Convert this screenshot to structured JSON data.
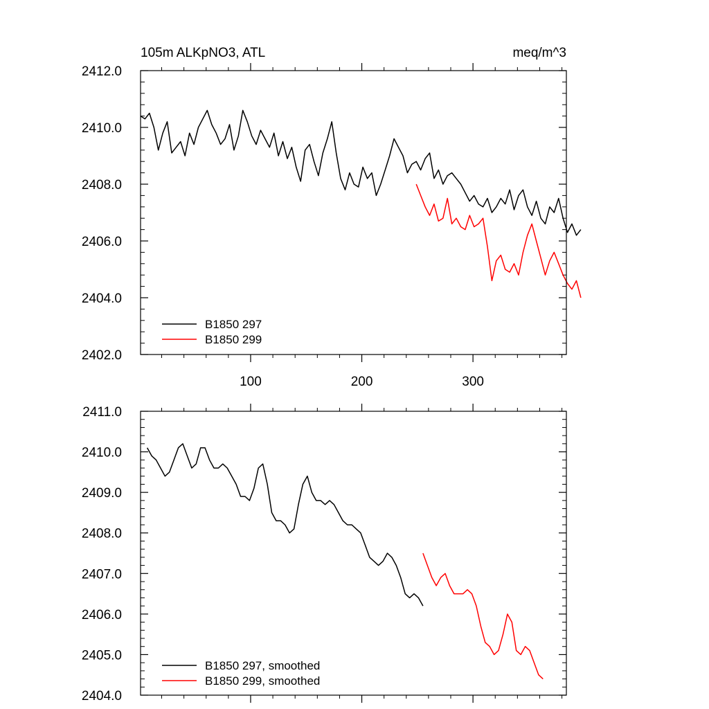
{
  "figure": {
    "title_left": "105m ALKpNO3, ATL",
    "title_right": "meq/m^3"
  },
  "chart_data": [
    {
      "type": "line",
      "panel": "top",
      "title": "105m ALKpNO3, ATL",
      "units": "meq/m^3",
      "xlim": [
        1,
        384
      ],
      "ylim": [
        2402.0,
        2412.0
      ],
      "x_ticks": [
        100,
        200,
        300
      ],
      "x_tick_labels": [
        "100",
        "200",
        "300"
      ],
      "y_ticks": [
        2402.0,
        2404.0,
        2406.0,
        2408.0,
        2410.0,
        2412.0
      ],
      "y_tick_labels": [
        "2402.0",
        "2404.0",
        "2406.0",
        "2408.0",
        "2410.0",
        "2412.0"
      ],
      "legend_position": "bottom-left",
      "series": [
        {
          "name": "B1850 297",
          "color": "#000000",
          "x_start": 1,
          "x_step": 4,
          "values": [
            2410.4,
            2410.3,
            2410.5,
            2410.0,
            2409.2,
            2409.8,
            2410.2,
            2409.1,
            2409.3,
            2409.5,
            2409.0,
            2409.8,
            2409.4,
            2410.0,
            2410.3,
            2410.6,
            2410.1,
            2409.8,
            2409.4,
            2409.6,
            2410.1,
            2409.2,
            2409.7,
            2410.6,
            2410.2,
            2409.7,
            2409.4,
            2409.9,
            2409.6,
            2409.3,
            2409.8,
            2409.0,
            2409.5,
            2408.9,
            2409.3,
            2408.6,
            2408.1,
            2409.2,
            2409.4,
            2408.8,
            2408.3,
            2409.1,
            2409.6,
            2410.2,
            2409.1,
            2408.2,
            2407.8,
            2408.4,
            2408.0,
            2407.9,
            2408.6,
            2408.2,
            2408.4,
            2407.6,
            2408.0,
            2408.5,
            2409.0,
            2409.6,
            2409.3,
            2409.0,
            2408.4,
            2408.7,
            2408.8,
            2408.5,
            2408.9,
            2409.1,
            2408.2,
            2408.5,
            2408.0,
            2408.3,
            2408.4,
            2408.2,
            2408.0,
            2407.7,
            2407.4,
            2407.6,
            2407.3,
            2407.2,
            2407.5,
            2407.0,
            2407.2,
            2407.5,
            2407.3,
            2407.8,
            2407.1,
            2407.6,
            2407.8,
            2407.2,
            2406.9,
            2407.4,
            2406.8,
            2406.6,
            2407.2,
            2407.0,
            2407.5,
            2406.8,
            2406.3,
            2406.6,
            2406.2,
            2406.4
          ],
          "smoothed": [
            2410.1,
            2409.9,
            2409.8,
            2409.6,
            2409.4,
            2409.5,
            2409.8,
            2410.1,
            2410.2,
            2409.9,
            2409.6,
            2409.7,
            2410.1,
            2410.1,
            2409.8,
            2409.6,
            2409.6,
            2409.7,
            2409.6,
            2409.4,
            2409.2,
            2408.9,
            2408.9,
            2408.8,
            2409.1,
            2409.6,
            2409.7,
            2409.2,
            2408.5,
            2408.3,
            2408.3,
            2408.2,
            2408.0,
            2408.1,
            2408.7,
            2409.2,
            2409.4,
            2409.0,
            2408.8,
            2408.8,
            2408.7,
            2408.8,
            2408.7,
            2408.5,
            2408.3,
            2408.2,
            2408.2,
            2408.1,
            2408.0,
            2407.7,
            2407.4,
            2407.3,
            2407.2,
            2407.3,
            2407.5,
            2407.4,
            2407.2,
            2406.9,
            2406.5,
            2406.4,
            2406.5,
            2406.4,
            2406.2
          ]
        },
        {
          "name": "B1850 299",
          "color": "#ff0000",
          "x_start": 249,
          "x_step": 4,
          "values": [
            2408.0,
            2407.6,
            2407.2,
            2406.9,
            2407.3,
            2406.7,
            2406.8,
            2407.5,
            2406.6,
            2406.8,
            2406.5,
            2406.4,
            2406.9,
            2406.5,
            2406.6,
            2406.8,
            2405.8,
            2404.6,
            2405.3,
            2405.5,
            2405.0,
            2404.9,
            2405.2,
            2404.8,
            2405.6,
            2406.2,
            2406.6,
            2406.0,
            2405.4,
            2404.8,
            2405.3,
            2405.6,
            2405.2,
            2404.8,
            2404.5,
            2404.3,
            2404.6,
            2404.0
          ],
          "smoothed": [
            2407.5,
            2407.2,
            2406.9,
            2406.7,
            2406.9,
            2407.0,
            2406.7,
            2406.5,
            2406.5,
            2406.5,
            2406.6,
            2406.5,
            2406.2,
            2405.7,
            2405.3,
            2405.2,
            2405.0,
            2405.1,
            2405.5,
            2406.0,
            2405.8,
            2405.1,
            2405.0,
            2405.2,
            2405.1,
            2404.8,
            2404.5,
            2404.4
          ]
        }
      ]
    },
    {
      "type": "line",
      "panel": "bottom",
      "xlim": [
        1,
        384
      ],
      "ylim": [
        2404.0,
        2411.0
      ],
      "x_ticks": [
        100,
        200,
        300
      ],
      "y_ticks": [
        2404.0,
        2405.0,
        2406.0,
        2407.0,
        2408.0,
        2409.0,
        2410.0,
        2411.0
      ],
      "y_tick_labels": [
        "2404.0",
        "2405.0",
        "2406.0",
        "2407.0",
        "2408.0",
        "2409.0",
        "2410.0",
        "2411.0"
      ],
      "legend_position": "bottom-left",
      "legend": [
        "B1850 297, smoothed",
        "B1850 299, smoothed"
      ]
    }
  ]
}
